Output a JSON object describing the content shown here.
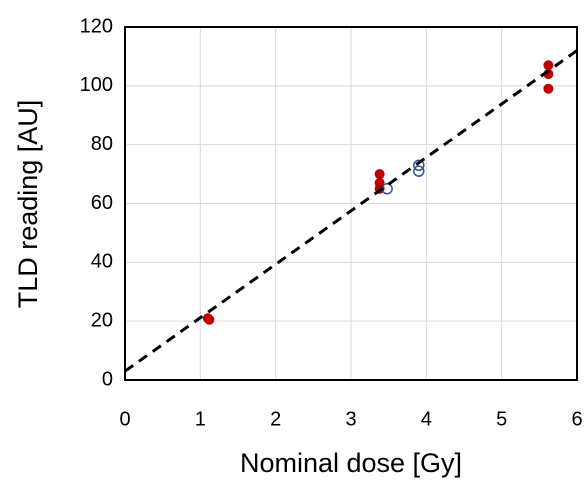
{
  "chart_data": {
    "type": "scatter",
    "xlabel": "Nominal dose [Gy]",
    "ylabel": "TLD reading [AU]",
    "xlim": [
      0,
      6
    ],
    "xticks": [
      0,
      1,
      2,
      3,
      4,
      5,
      6
    ],
    "ylim": [
      0,
      120
    ],
    "yticks": [
      0,
      20,
      40,
      60,
      80,
      100,
      120
    ],
    "grid": true,
    "series": [
      {
        "style": "filled",
        "color": "#c00000",
        "x": [
          1.1,
          1.12,
          3.38,
          3.38,
          3.38,
          5.62,
          5.62,
          5.62
        ],
        "values": [
          21,
          20.5,
          70,
          67,
          65,
          107,
          104,
          99
        ]
      },
      {
        "style": "open",
        "color": "#2f5597",
        "x": [
          3.48,
          3.9,
          3.9
        ],
        "values": [
          65,
          73,
          71
        ]
      },
      {
        "style": "dashed-line",
        "color": "#000000",
        "x": [
          0,
          6
        ],
        "values": [
          3,
          112
        ]
      }
    ]
  }
}
